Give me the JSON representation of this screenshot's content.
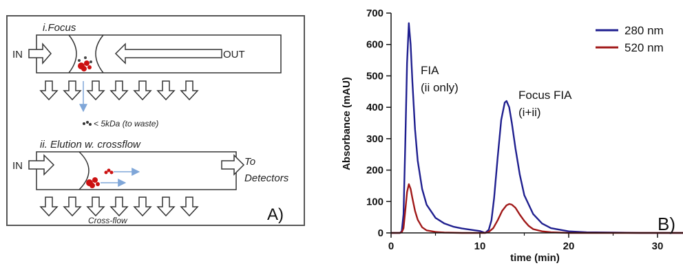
{
  "panel_a": {
    "focus_title": "i.Focus",
    "in_label_1": "IN",
    "out_label": "OUT",
    "waste_label": "< 5kDa (to waste)",
    "elution_title": "ii. Elution w. crossflow",
    "in_label_2": "IN",
    "to_label": "To",
    "detectors_label": "Detectors",
    "crossflow_label": "Cross-flow",
    "panel_letter": "A)"
  },
  "panel_b": {
    "panel_letter": "B)",
    "annotation_fia_1": "FIA",
    "annotation_fia_2": "(ii only)",
    "annotation_focus_1": "Focus FIA",
    "annotation_focus_2": "(i+ii)"
  },
  "colors": {
    "series_280": "#1f1f8f",
    "series_520": "#a01818",
    "particle": "#cc1111",
    "arrow_blue": "#7fa6d8"
  },
  "chart_data": {
    "type": "line",
    "xlabel": "time (min)",
    "ylabel": "Absorbance (mAU)",
    "xlim": [
      0,
      35
    ],
    "ylim": [
      0,
      700
    ],
    "xticks": [
      0,
      10,
      20,
      30
    ],
    "yticks": [
      0,
      100,
      200,
      300,
      400,
      500,
      600,
      700
    ],
    "legend_position": "top-right",
    "series": [
      {
        "name": "280 nm",
        "color": "#1f1f8f",
        "x": [
          0,
          1.0,
          1.2,
          1.4,
          1.6,
          1.8,
          2.0,
          2.2,
          2.4,
          2.7,
          3.0,
          3.5,
          4.0,
          5.0,
          6.0,
          7.0,
          8.0,
          9.0,
          10.0,
          10.6,
          11.0,
          11.3,
          11.6,
          12.0,
          12.4,
          12.8,
          13.0,
          13.3,
          13.6,
          14.0,
          14.5,
          15.0,
          16.0,
          17.0,
          18.0,
          20.0,
          22.0,
          25.0,
          28.0,
          31.0,
          35.0
        ],
        "y": [
          0,
          0,
          5,
          60,
          280,
          540,
          668,
          600,
          480,
          330,
          230,
          140,
          90,
          48,
          30,
          20,
          14,
          10,
          6,
          0,
          10,
          40,
          110,
          240,
          360,
          415,
          420,
          400,
          350,
          270,
          185,
          120,
          60,
          30,
          15,
          5,
          2,
          1,
          0,
          0,
          0
        ]
      },
      {
        "name": "520 nm",
        "color": "#a01818",
        "x": [
          0,
          1.0,
          1.2,
          1.4,
          1.6,
          1.8,
          2.0,
          2.2,
          2.4,
          2.7,
          3.0,
          3.5,
          4.0,
          5.0,
          6.0,
          8.0,
          10.0,
          10.6,
          11.0,
          11.5,
          12.0,
          12.5,
          13.0,
          13.3,
          13.6,
          14.0,
          14.5,
          15.0,
          15.5,
          16.0,
          17.0,
          18.0,
          20.0,
          25.0,
          30.0,
          35.0
        ],
        "y": [
          0,
          0,
          2,
          15,
          70,
          130,
          155,
          140,
          110,
          70,
          42,
          18,
          8,
          3,
          1,
          0,
          0,
          0,
          3,
          15,
          40,
          70,
          88,
          92,
          90,
          80,
          58,
          38,
          22,
          12,
          5,
          2,
          0,
          0,
          0,
          0
        ]
      }
    ]
  }
}
